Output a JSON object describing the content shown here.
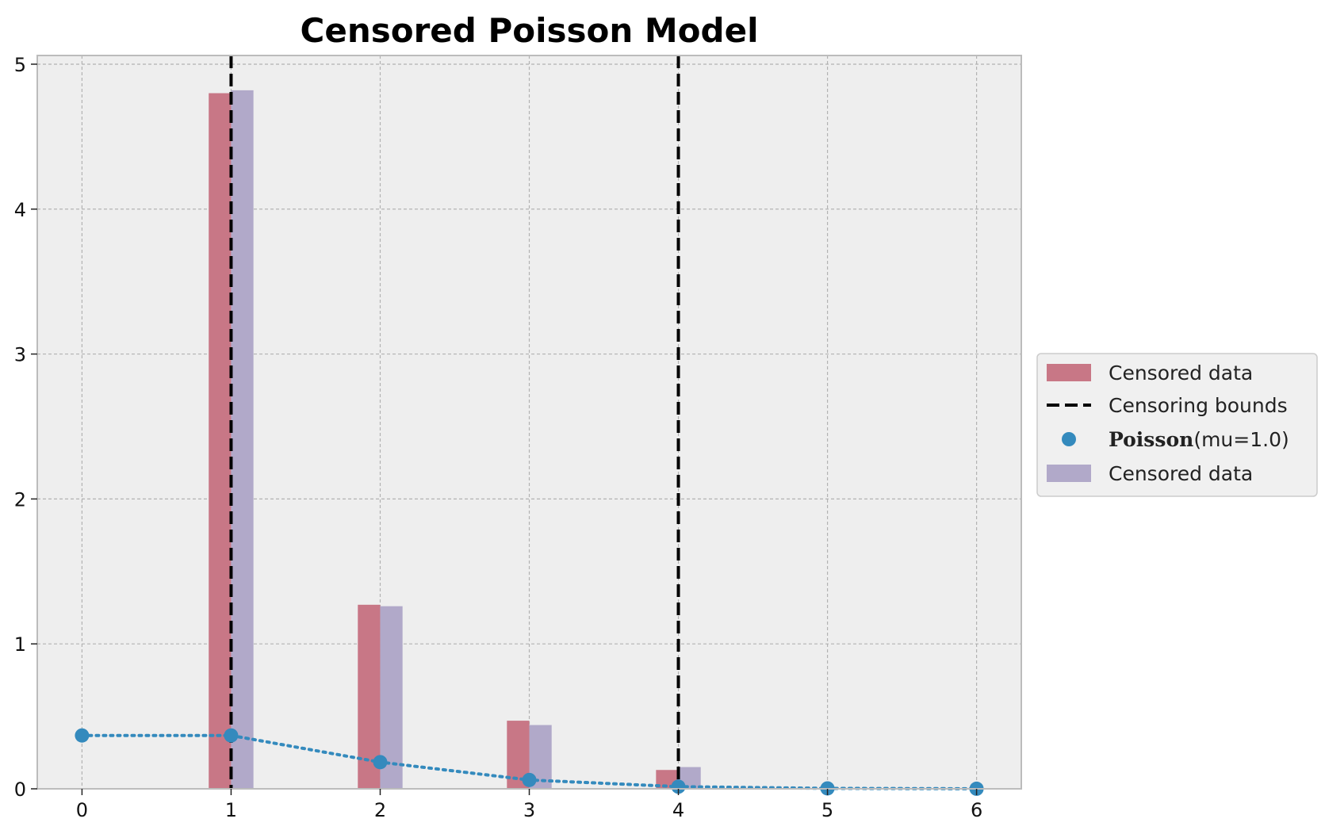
{
  "chart_data": {
    "type": "bar",
    "title": "Censored Poisson Model",
    "xlabel": "",
    "ylabel": "",
    "xlim": [
      -0.3,
      6.3
    ],
    "ylim": [
      0,
      5.06
    ],
    "xticks": [
      "0",
      "1",
      "2",
      "3",
      "4",
      "5",
      "6"
    ],
    "yticks": [
      "0",
      "1",
      "2",
      "3",
      "4",
      "5"
    ],
    "grid": true,
    "legend_position": "outside-right",
    "series": [
      {
        "name": "Censored data",
        "kind": "bar",
        "color": "#c87786",
        "x": [
          1,
          2,
          3,
          4
        ],
        "values": [
          4.8,
          1.27,
          0.47,
          0.13
        ]
      },
      {
        "name": "Censoring bounds",
        "kind": "vline",
        "color": "#000000",
        "x": [
          1,
          4
        ]
      },
      {
        "name_math": "Poisson",
        "name_rest": "(mu=1.0)",
        "kind": "line-markers",
        "color": "#348abd",
        "x": [
          0,
          1,
          2,
          3,
          4,
          5,
          6
        ],
        "values": [
          0.368,
          0.368,
          0.184,
          0.061,
          0.015,
          0.003,
          0.0005
        ]
      },
      {
        "name": "Censored data",
        "kind": "bar",
        "color": "#b1a9c9",
        "x": [
          1,
          2,
          3,
          4
        ],
        "values": [
          4.82,
          1.26,
          0.44,
          0.15
        ]
      }
    ]
  }
}
